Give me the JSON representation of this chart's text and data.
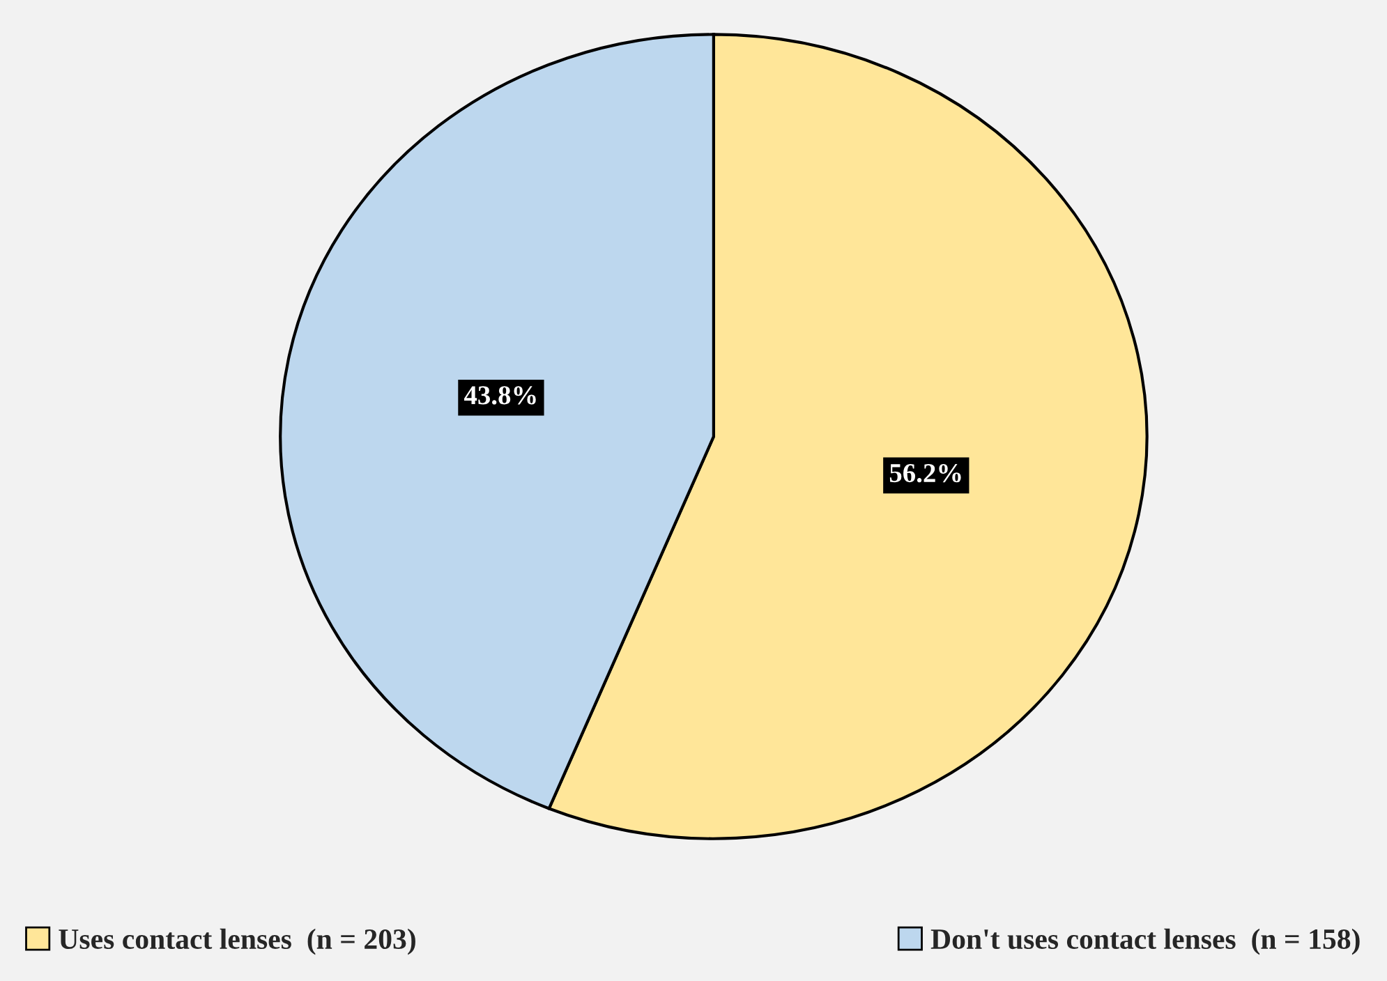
{
  "chart_data": {
    "type": "pie",
    "categories": [
      "Uses contact lenses  (n = 203)",
      "Don't uses contact lenses  (n = 158)"
    ],
    "values": [
      56.2,
      43.8
    ],
    "colors": [
      "#ffe699",
      "#bdd7ee"
    ],
    "value_labels": [
      "56.2%",
      "43.8%"
    ],
    "legend": "bottom"
  }
}
